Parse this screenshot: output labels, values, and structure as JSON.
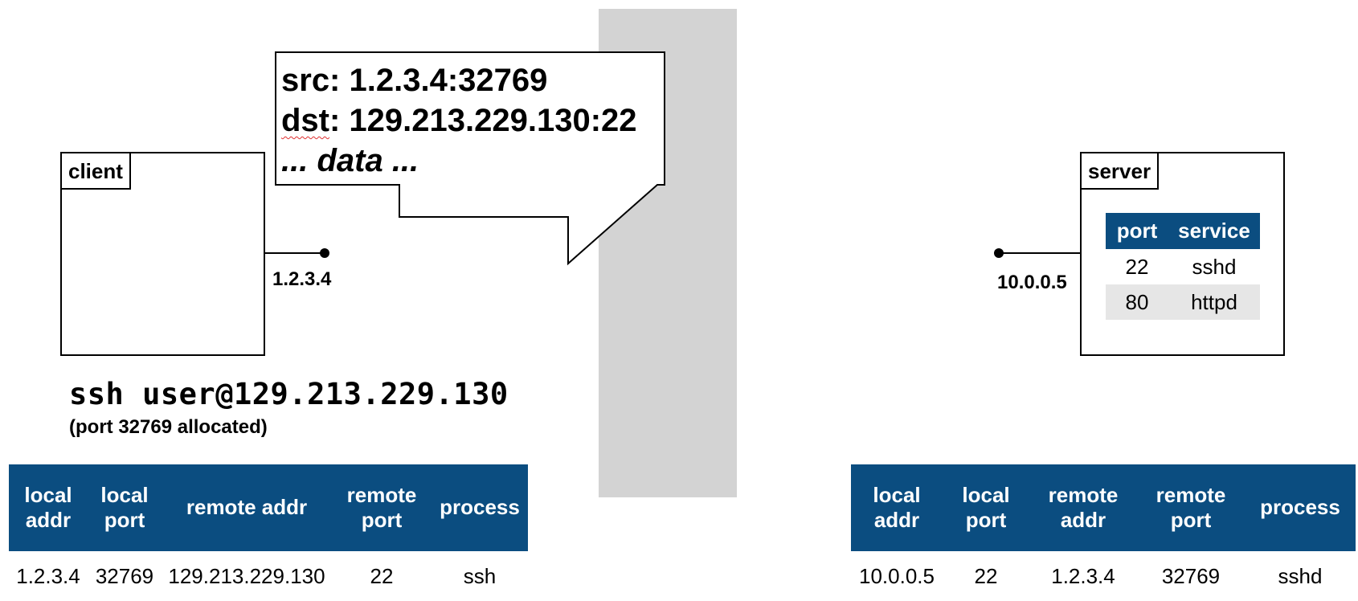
{
  "client": {
    "label": "client",
    "ip": "1.2.3.4",
    "command": "ssh user@129.213.229.130",
    "note": "(port 32769 allocated)"
  },
  "packet": {
    "src_prefix": "src: ",
    "src": "1.2.3.4:32769",
    "dst_word": "dst",
    "dst_rest": ": 129.213.229.130:22",
    "data": "... data ..."
  },
  "server": {
    "label": "server",
    "ip": "10.0.0.5",
    "services": {
      "headers": [
        "port",
        "service"
      ],
      "rows": [
        [
          "22",
          "sshd"
        ],
        [
          "80",
          "httpd"
        ]
      ]
    }
  },
  "client_table": {
    "headers": [
      [
        "local",
        "addr"
      ],
      [
        "local",
        "port"
      ],
      [
        "remote addr"
      ],
      [
        "remote",
        "port"
      ],
      [
        "process"
      ]
    ],
    "row": [
      "1.2.3.4",
      "32769",
      "129.213.229.130",
      "22",
      "ssh"
    ]
  },
  "server_table": {
    "headers": [
      [
        "local",
        "addr"
      ],
      [
        "local",
        "port"
      ],
      [
        "remote",
        "addr"
      ],
      [
        "remote",
        "port"
      ],
      [
        "process"
      ]
    ],
    "row": [
      "10.0.0.5",
      "22",
      "1.2.3.4",
      "32769",
      "sshd"
    ]
  },
  "colors": {
    "header_blue": "#0b4d80",
    "firewall_gray": "#d3d3d3",
    "alt_row": "#e6e6e6"
  }
}
